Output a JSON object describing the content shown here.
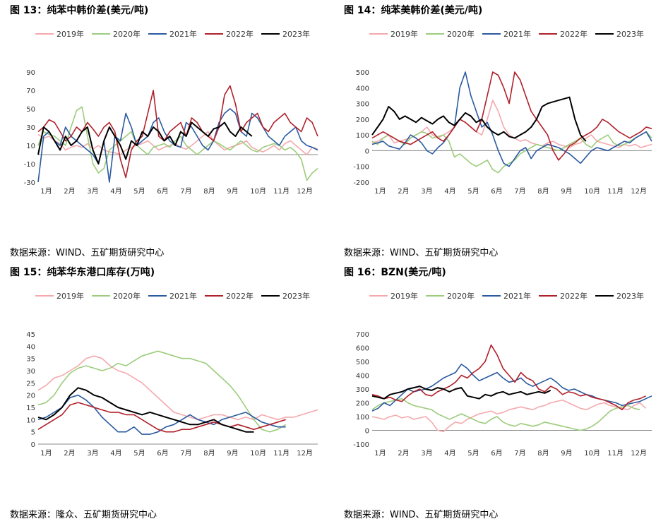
{
  "years": [
    "2019年",
    "2020年",
    "2021年",
    "2022年",
    "2023年"
  ],
  "colors": [
    "#f4a9ad",
    "#9ccc7c",
    "#2a5aa0",
    "#b0202a",
    "#000000"
  ],
  "months": [
    "1月",
    "2月",
    "3月",
    "4月",
    "5月",
    "6月",
    "7月",
    "8月",
    "9月",
    "10月",
    "11月",
    "12月"
  ],
  "chart_data": [
    {
      "type": "line",
      "title": "图 13：纯苯中韩价差(美元/吨)",
      "source": "数据来源：WIND、五矿期货研究中心",
      "ylim": [
        -30,
        90
      ],
      "yticks": [
        "90",
        "70",
        "50",
        "30",
        "10",
        "-10",
        "-30"
      ],
      "legend_position": "top",
      "series": [
        {
          "name": "2019年",
          "values": [
            22,
            18,
            20,
            15,
            12,
            5,
            8,
            10,
            8,
            12,
            6,
            10,
            5,
            3,
            2,
            0,
            5,
            8,
            10,
            12,
            15,
            10,
            5,
            8,
            10,
            12,
            8,
            6,
            10,
            15,
            20,
            25,
            15,
            10,
            5,
            8,
            10,
            12,
            15,
            8,
            5,
            3,
            6,
            10,
            5,
            12,
            15,
            10,
            5,
            0,
            8,
            6
          ]
        },
        {
          "name": "2020年",
          "values": [
            10,
            25,
            22,
            20,
            15,
            10,
            30,
            48,
            52,
            20,
            -10,
            -20,
            -15,
            5,
            10,
            15,
            20,
            25,
            10,
            5,
            0,
            8,
            10,
            12,
            8,
            15,
            20,
            10,
            5,
            0,
            5,
            10,
            15,
            12,
            8,
            5,
            10,
            15,
            10,
            5,
            3,
            8,
            10,
            12,
            10,
            5,
            8,
            3,
            -5,
            -28,
            -20,
            -15
          ]
        },
        {
          "name": "2021年",
          "values": [
            -30,
            20,
            25,
            15,
            10,
            30,
            20,
            15,
            10,
            5,
            0,
            -10,
            15,
            -30,
            20,
            15,
            45,
            30,
            10,
            15,
            20,
            35,
            40,
            25,
            15,
            10,
            8,
            35,
            30,
            20,
            10,
            5,
            15,
            35,
            45,
            50,
            45,
            25,
            20,
            45,
            40,
            30,
            20,
            15,
            10,
            20,
            25,
            30,
            15,
            10,
            8,
            5
          ]
        },
        {
          "name": "2022年",
          "values": [
            25,
            30,
            38,
            35,
            25,
            15,
            20,
            30,
            25,
            35,
            28,
            20,
            30,
            35,
            25,
            -5,
            -25,
            5,
            15,
            20,
            45,
            70,
            20,
            15,
            25,
            30,
            35,
            20,
            40,
            35,
            25,
            20,
            15,
            30,
            65,
            75,
            55,
            25,
            35,
            40,
            45,
            30,
            25,
            35,
            40,
            45,
            35,
            30,
            25,
            40,
            35,
            20
          ]
        },
        {
          "name": "2023年",
          "values": [
            0,
            30,
            25,
            15,
            5,
            20,
            10,
            15,
            25,
            30,
            5,
            -10,
            15,
            30,
            20,
            10,
            -5,
            15,
            10,
            25,
            20,
            30,
            25,
            15,
            20,
            10,
            25,
            20,
            35,
            30,
            25,
            20,
            28,
            30,
            35,
            25,
            20,
            30,
            25,
            20
          ]
        }
      ]
    },
    {
      "type": "line",
      "title": "图 14：纯苯美韩价差(美元/吨)",
      "source": "数据来源：WIND、五矿期货研究中心",
      "ylim": [
        -200,
        500
      ],
      "yticks": [
        "500",
        "400",
        "300",
        "200",
        "100",
        "0",
        "-100",
        "-200"
      ],
      "legend_position": "top",
      "series": [
        {
          "name": "2019年",
          "values": [
            50,
            60,
            80,
            100,
            50,
            60,
            70,
            80,
            100,
            120,
            150,
            100,
            80,
            100,
            120,
            150,
            200,
            180,
            150,
            120,
            100,
            200,
            320,
            250,
            150,
            100,
            80,
            60,
            70,
            50,
            40,
            30,
            50,
            60,
            40,
            30,
            20,
            40,
            50,
            80,
            100,
            60,
            50,
            40,
            30,
            20,
            40,
            30,
            40,
            20,
            30,
            40
          ]
        },
        {
          "name": "2020年",
          "values": [
            60,
            40,
            80,
            100,
            80,
            60,
            40,
            80,
            100,
            120,
            110,
            80,
            90,
            100,
            60,
            -40,
            -20,
            -50,
            -80,
            -100,
            -80,
            -60,
            -120,
            -140,
            -100,
            -80,
            -60,
            -20,
            0,
            20,
            40,
            30,
            20,
            10,
            0,
            20,
            40,
            60,
            80,
            40,
            20,
            60,
            80,
            100,
            50,
            30,
            40,
            60,
            80,
            100,
            120,
            80
          ]
        },
        {
          "name": "2021年",
          "values": [
            40,
            50,
            60,
            30,
            20,
            10,
            50,
            100,
            80,
            50,
            0,
            -20,
            20,
            50,
            100,
            150,
            400,
            520,
            350,
            250,
            150,
            180,
            100,
            0,
            -80,
            -100,
            -50,
            0,
            20,
            -50,
            0,
            20,
            40,
            30,
            20,
            0,
            -20,
            -50,
            -80,
            -40,
            0,
            20,
            10,
            0,
            20,
            40,
            60,
            50,
            80,
            100,
            120,
            60
          ]
        },
        {
          "name": "2022年",
          "values": [
            80,
            100,
            120,
            100,
            80,
            60,
            50,
            40,
            60,
            80,
            100,
            120,
            80,
            60,
            100,
            150,
            200,
            180,
            150,
            120,
            200,
            350,
            500,
            480,
            400,
            300,
            500,
            450,
            350,
            250,
            200,
            150,
            100,
            0,
            -60,
            -20,
            30,
            50,
            80,
            100,
            120,
            150,
            200,
            180,
            150,
            120,
            100,
            80,
            100,
            120,
            150,
            140
          ]
        },
        {
          "name": "2023年",
          "values": [
            100,
            150,
            200,
            280,
            250,
            200,
            220,
            200,
            180,
            210,
            190,
            170,
            200,
            220,
            180,
            160,
            200,
            240,
            220,
            180,
            200,
            150,
            120,
            100,
            120,
            90,
            80,
            100,
            120,
            150,
            200,
            280,
            300,
            310,
            320,
            330,
            340,
            200,
            100,
            60
          ]
        }
      ]
    },
    {
      "type": "line",
      "title": "图 15：纯苯华东港口库存(万吨)",
      "source": "数据来源：隆众、五矿期货研究中心",
      "ylim": [
        0,
        45
      ],
      "yticks": [
        "45",
        "40",
        "35",
        "30",
        "25",
        "20",
        "15",
        "10",
        "5",
        "0"
      ],
      "legend_position": "top",
      "series": [
        {
          "name": "2019年",
          "values": [
            22,
            24,
            27,
            28,
            30,
            32,
            35,
            36,
            35,
            32,
            30,
            29,
            27,
            25,
            22,
            19,
            16,
            13,
            12,
            11,
            10,
            11,
            12,
            12,
            11,
            10,
            11,
            10,
            12,
            11,
            10,
            11,
            11,
            12,
            13,
            14
          ]
        },
        {
          "name": "2020年",
          "values": [
            16,
            17,
            20,
            25,
            29,
            31,
            32,
            31,
            30,
            31,
            33,
            32,
            34,
            36,
            37,
            38,
            37,
            36,
            35,
            35,
            34,
            33,
            30,
            27,
            24,
            20,
            15,
            10,
            6,
            5,
            6,
            8
          ]
        },
        {
          "name": "2021年",
          "values": [
            10,
            11,
            13,
            15,
            19,
            20,
            18,
            15,
            11,
            8,
            5,
            5,
            7,
            4,
            4,
            5,
            7,
            8,
            10,
            12,
            10,
            9,
            8,
            10,
            11,
            12,
            13,
            11,
            9,
            8,
            7,
            7
          ]
        },
        {
          "name": "2022年",
          "values": [
            6,
            8,
            10,
            12,
            16,
            17,
            16,
            15,
            14,
            13,
            13,
            12,
            12,
            10,
            8,
            6,
            5,
            5,
            6,
            6,
            7,
            8,
            9,
            8,
            7,
            8,
            7,
            6,
            7,
            8,
            9,
            10
          ]
        },
        {
          "name": "2023年",
          "values": [
            11,
            10,
            12,
            15,
            20,
            23,
            22,
            20,
            19,
            17,
            15,
            14,
            13,
            12,
            13,
            12,
            11,
            10,
            9,
            8,
            8,
            9,
            10,
            8,
            7,
            6,
            5,
            5
          ]
        }
      ]
    },
    {
      "type": "line",
      "title": "图 16：BZN(美元/吨)",
      "source": "数据来源：WIND、五矿期货研究中心",
      "ylim": [
        -100,
        700
      ],
      "yticks": [
        "700",
        "600",
        "500",
        "400",
        "300",
        "200",
        "100",
        "0",
        "-100"
      ],
      "legend_position": "top",
      "series": [
        {
          "name": "2019年",
          "values": [
            100,
            90,
            80,
            100,
            110,
            90,
            100,
            80,
            90,
            100,
            60,
            0,
            -10,
            30,
            60,
            50,
            80,
            100,
            120,
            130,
            140,
            120,
            130,
            150,
            160,
            170,
            160,
            150,
            170,
            180,
            200,
            210,
            220,
            200,
            180,
            160,
            150,
            170,
            190,
            200,
            180,
            170,
            160,
            150,
            180,
            200,
            160
          ]
        },
        {
          "name": "2020年",
          "values": [
            150,
            180,
            200,
            210,
            220,
            230,
            200,
            180,
            170,
            160,
            150,
            120,
            100,
            80,
            100,
            120,
            100,
            80,
            60,
            50,
            80,
            100,
            60,
            40,
            30,
            50,
            40,
            30,
            40,
            60,
            50,
            40,
            30,
            20,
            10,
            0,
            10,
            30,
            60,
            100,
            140,
            160,
            170,
            180,
            160,
            150
          ]
        },
        {
          "name": "2021年",
          "values": [
            140,
            160,
            200,
            180,
            220,
            260,
            300,
            280,
            290,
            300,
            320,
            350,
            380,
            400,
            420,
            480,
            450,
            400,
            360,
            380,
            400,
            420,
            380,
            350,
            360,
            380,
            340,
            320,
            340,
            360,
            380,
            350,
            310,
            290,
            300,
            280,
            260,
            250,
            230,
            220,
            210,
            200,
            180,
            190,
            200,
            210,
            230,
            250
          ]
        },
        {
          "name": "2022年",
          "values": [
            260,
            250,
            230,
            240,
            220,
            210,
            250,
            280,
            300,
            260,
            250,
            280,
            300,
            320,
            350,
            400,
            380,
            420,
            450,
            500,
            620,
            550,
            450,
            400,
            350,
            420,
            380,
            360,
            300,
            280,
            320,
            300,
            260,
            280,
            270,
            250,
            260,
            240,
            230,
            220,
            200,
            180,
            150,
            200,
            220,
            230,
            250
          ]
        },
        {
          "name": "2023年",
          "values": [
            250,
            240,
            230,
            260,
            270,
            280,
            300,
            310,
            320,
            300,
            290,
            310,
            300,
            280,
            300,
            310,
            250,
            240,
            230,
            260,
            250,
            270,
            280,
            260,
            270,
            280,
            260,
            270,
            280,
            270,
            290
          ]
        }
      ]
    }
  ]
}
